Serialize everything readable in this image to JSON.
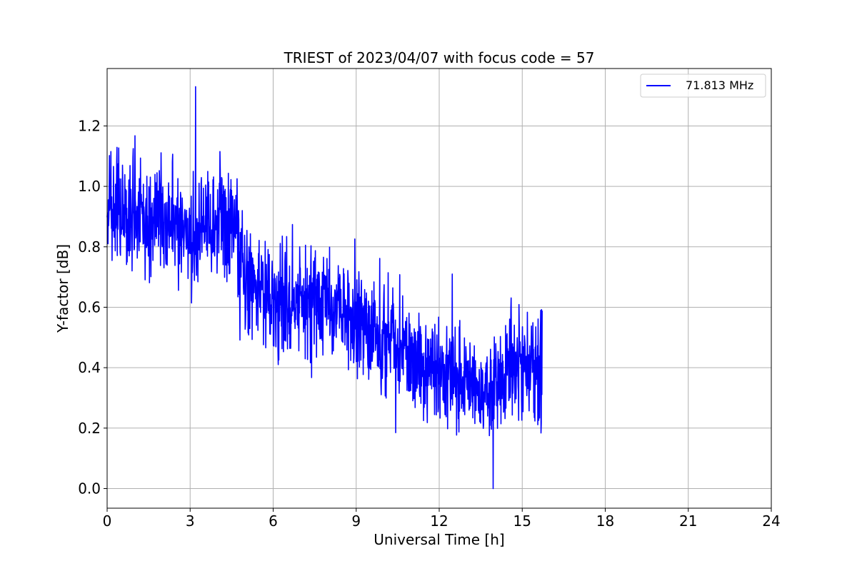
{
  "chart_data": {
    "type": "line",
    "title": "TRIEST of 2023/04/07 with focus code = 57",
    "xlabel": "Universal Time [h]",
    "ylabel": "Y-factor [dB]",
    "xlim": [
      0,
      24
    ],
    "ylim": [
      -0.065,
      1.39
    ],
    "x_ticks": [
      0,
      3,
      6,
      9,
      12,
      15,
      18,
      21,
      24
    ],
    "x_tick_labels": [
      "0",
      "3",
      "6",
      "9",
      "12",
      "15",
      "18",
      "21",
      "24"
    ],
    "y_ticks": [
      0.0,
      0.2,
      0.4,
      0.6,
      0.8,
      1.0,
      1.2
    ],
    "y_tick_labels": [
      "0.0",
      "0.2",
      "0.4",
      "0.6",
      "0.8",
      "1.0",
      "1.2"
    ],
    "grid": true,
    "legend_position": "top-right",
    "series": [
      {
        "name": "71.813 MHz",
        "color": "#0000ff",
        "x_start": 0,
        "x_end": 15.72,
        "trend_x": [
          0,
          1,
          2,
          3,
          4,
          4.7,
          4.8,
          6,
          7.5,
          9,
          10.5,
          12,
          13.5,
          15,
          15.72
        ],
        "trend_y": [
          0.93,
          0.9,
          0.88,
          0.87,
          0.88,
          0.86,
          0.72,
          0.6,
          0.61,
          0.57,
          0.47,
          0.39,
          0.33,
          0.39,
          0.4
        ],
        "noise_std": 0.09,
        "max_value": 1.33,
        "max_at": 3.2,
        "min_value": 0.0,
        "min_at": 13.95
      }
    ]
  }
}
